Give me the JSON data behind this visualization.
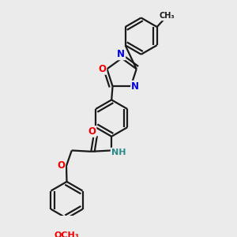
{
  "bg": "#ebebeb",
  "bond_color": "#1a1a1a",
  "lw": 1.6,
  "atom_colors": {
    "N": "#0000ee",
    "O": "#ee0000",
    "NH": "#2a8a8a",
    "C": "#1a1a1a"
  }
}
